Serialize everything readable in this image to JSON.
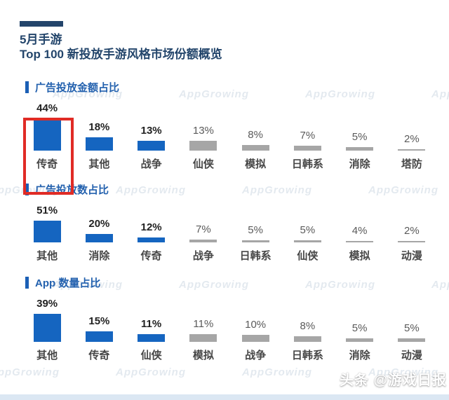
{
  "title": {
    "line1": "5月手游",
    "line2": "Top 100 新投放手游风格市场份额概览"
  },
  "watermark": {
    "text": "AppGrowing"
  },
  "credit": {
    "text": "头条 @游戏日报"
  },
  "colors": {
    "navy": "#23456b",
    "header_blue": "#2361ae",
    "marker_blue": "#1b5fb5",
    "bar_blue": "#1565c0",
    "bar_gray": "#a6a6a6",
    "highlight_red": "#e02b25",
    "bottom_strip": "#dbe7f3"
  },
  "chart_data": [
    {
      "type": "bar",
      "title": "广告投放金额占比",
      "unit": "%",
      "categories": [
        "传奇",
        "其他",
        "战争",
        "仙侠",
        "模拟",
        "日韩系",
        "消除",
        "塔防"
      ],
      "values": [
        44,
        18,
        13,
        13,
        8,
        7,
        5,
        2
      ],
      "value_labels": [
        "44%",
        "18%",
        "13%",
        "13%",
        "8%",
        "7%",
        "5%",
        "2%"
      ],
      "bar_colors": [
        "blue",
        "blue",
        "blue",
        "gray",
        "gray",
        "gray",
        "gray",
        "gray"
      ],
      "highlighted_category": "传奇",
      "bar_scale": 1.05,
      "ylim": [
        0,
        50
      ],
      "grid": false,
      "legend": "none"
    },
    {
      "type": "bar",
      "title": "广告投放数占比",
      "unit": "%",
      "categories": [
        "其他",
        "消除",
        "传奇",
        "战争",
        "日韩系",
        "仙侠",
        "模拟",
        "动漫"
      ],
      "values": [
        51,
        20,
        12,
        7,
        5,
        5,
        4,
        2
      ],
      "value_labels": [
        "51%",
        "20%",
        "12%",
        "7%",
        "5%",
        "5%",
        "4%",
        "2%"
      ],
      "bar_colors": [
        "blue",
        "blue",
        "blue",
        "gray",
        "gray",
        "gray",
        "gray",
        "gray"
      ],
      "bar_scale": 0.6,
      "ylim": [
        0,
        55
      ],
      "grid": false,
      "legend": "none"
    },
    {
      "type": "bar",
      "title": "App 数量占比",
      "unit": "%",
      "categories": [
        "其他",
        "传奇",
        "仙侠",
        "模拟",
        "战争",
        "日韩系",
        "消除",
        "动漫"
      ],
      "values": [
        39,
        15,
        11,
        11,
        10,
        8,
        5,
        5
      ],
      "value_labels": [
        "39%",
        "15%",
        "11%",
        "11%",
        "10%",
        "8%",
        "5%",
        "5%"
      ],
      "bar_colors": [
        "blue",
        "blue",
        "blue",
        "gray",
        "gray",
        "gray",
        "gray",
        "gray"
      ],
      "bar_scale": 1.03,
      "ylim": [
        0,
        45
      ],
      "grid": false,
      "legend": "none"
    }
  ]
}
